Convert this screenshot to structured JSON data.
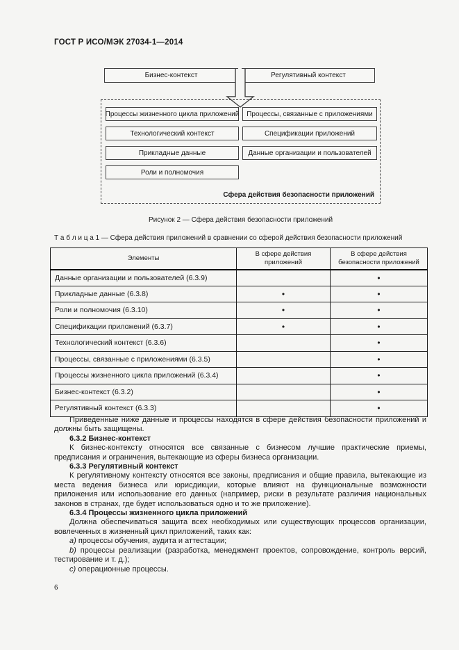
{
  "page": {
    "header": "ГОСТ Р ИСО/МЭК 27034-1—2014",
    "page_number": "6"
  },
  "figure": {
    "top_boxes": [
      "Бизнес-контекст",
      "Регулятивный контекст"
    ],
    "left_boxes": [
      "Процессы жизненного цикла приложений",
      "Технологический контекст",
      "Прикладные данные",
      "Роли и полномочия"
    ],
    "right_boxes": [
      "Процессы, связанные с приложениями",
      "Спецификации приложений",
      "Данные организации и пользователей"
    ],
    "scope_label": "Сфера действия безопасности приложений",
    "caption": "Рисунок 2 — Сфера действия безопасности приложений"
  },
  "table": {
    "title": "Т а б л и ц а  1 — Сфера действия приложений в сравнении со сферой действия безопасности приложений",
    "headers": [
      "Элементы",
      "В сфере действия\nприложений",
      "В сфере действия\nбезопасности приложений"
    ],
    "bullet": "•",
    "rows": [
      {
        "element": "Данные организации и пользователей (6.3.9)",
        "in_app_scope": false,
        "in_security_scope": true
      },
      {
        "element": "Прикладные данные (6.3.8)",
        "in_app_scope": true,
        "in_security_scope": true
      },
      {
        "element": "Роли и полномочия (6.3.10)",
        "in_app_scope": true,
        "in_security_scope": true
      },
      {
        "element": "Спецификации приложений (6.3.7)",
        "in_app_scope": true,
        "in_security_scope": true
      },
      {
        "element": "Технологический контекст (6.3.6)",
        "in_app_scope": false,
        "in_security_scope": true
      },
      {
        "element": "Процессы, связанные с приложениями (6.3.5)",
        "in_app_scope": false,
        "in_security_scope": true
      },
      {
        "element": "Процессы жизненного цикла приложений (6.3.4)",
        "in_app_scope": false,
        "in_security_scope": true
      },
      {
        "element": "Бизнес-контекст (6.3.2)",
        "in_app_scope": false,
        "in_security_scope": true
      },
      {
        "element": "Регулятивный контекст (6.3.3)",
        "in_app_scope": false,
        "in_security_scope": true
      }
    ]
  },
  "body": {
    "paragraphs": [
      {
        "style": "normal",
        "text": "Приведенные ниже данные и процессы находятся в сфере действия безопасности приложений и должны быть защищены."
      },
      {
        "style": "heading",
        "text": "6.3.2  Бизнес-контекст"
      },
      {
        "style": "normal",
        "text": "К бизнес-контексту относятся все связанные с бизнесом лучшие практические приемы, предписания и ограничения, вытекающие из сферы бизнеса организации."
      },
      {
        "style": "heading",
        "text": "6.3.3  Регулятивный контекст"
      },
      {
        "style": "normal",
        "text": "К регулятивному контексту относятся все законы, предписания и общие правила, вытекающие из места ведения бизнеса или юрисдикции, которые влияют на функциональные возможности приложения или использование его данных (например, риски в результате различия национальных законов в странах, где будет использоваться одно и то же приложение)."
      },
      {
        "style": "heading",
        "text": "6.3.4  Процессы жизненного цикла приложений"
      },
      {
        "style": "normal",
        "text": "Должна обеспечиваться защита всех необходимых или существующих процессов организации, вовлеченных в жизненный цикл приложений, таких как:"
      },
      {
        "style": "list",
        "marker": "a)",
        "text": "процессы обучения, аудита и аттестации;"
      },
      {
        "style": "list",
        "marker": "b)",
        "text": "процессы реализации (разработка, менеджмент проектов, сопровождение, контроль версий, тестирование и т. д.);"
      },
      {
        "style": "list",
        "marker": "c)",
        "text": "операционные процессы."
      }
    ]
  }
}
